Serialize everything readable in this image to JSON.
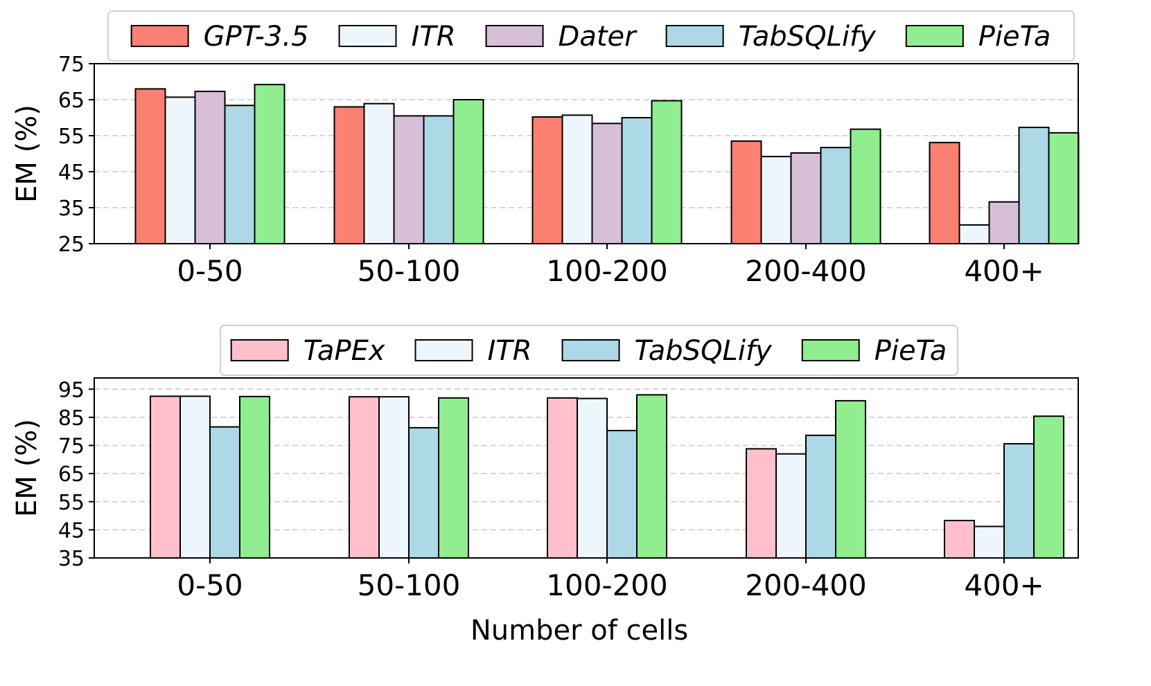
{
  "chart_data": [
    {
      "type": "bar",
      "categories": [
        "0-50",
        "50-100",
        "100-200",
        "200-400",
        "400+"
      ],
      "ylabel": "EM (%)",
      "xlabel": "",
      "ylim": [
        25,
        75
      ],
      "yticks": [
        25,
        35,
        45,
        55,
        65,
        75
      ],
      "legend_position": "top",
      "series": [
        {
          "name": "GPT-3.5",
          "color": "#fa8072",
          "values": [
            68.0,
            63.0,
            60.2,
            53.5,
            53.1
          ]
        },
        {
          "name": "ITR",
          "color": "#eef6fd",
          "values": [
            65.7,
            63.9,
            60.7,
            49.2,
            30.2
          ]
        },
        {
          "name": "Dater",
          "color": "#d8bfd8",
          "values": [
            67.3,
            60.5,
            58.4,
            50.2,
            36.6
          ]
        },
        {
          "name": "TabSQLify",
          "color": "#add8e6",
          "values": [
            63.4,
            60.5,
            60.0,
            51.7,
            57.3
          ]
        },
        {
          "name": "PieTa",
          "color": "#90ee90",
          "values": [
            69.2,
            65.0,
            64.7,
            56.8,
            55.8
          ]
        }
      ]
    },
    {
      "type": "bar",
      "categories": [
        "0-50",
        "50-100",
        "100-200",
        "200-400",
        "400+"
      ],
      "ylabel": "EM (%)",
      "xlabel": "Number of cells",
      "ylim": [
        35,
        99
      ],
      "yticks": [
        35,
        45,
        55,
        65,
        75,
        85,
        95
      ],
      "legend_position": "top",
      "series": [
        {
          "name": "TaPEx",
          "color": "#ffc0cb",
          "values": [
            92.5,
            92.3,
            91.9,
            73.8,
            48.3
          ]
        },
        {
          "name": "ITR",
          "color": "#eef6fd",
          "values": [
            92.5,
            92.3,
            91.7,
            72.0,
            46.2
          ]
        },
        {
          "name": "TabSQLify",
          "color": "#add8e6",
          "values": [
            81.6,
            81.3,
            80.3,
            78.6,
            75.6
          ]
        },
        {
          "name": "PieTa",
          "color": "#90ee90",
          "values": [
            92.4,
            91.9,
            93.0,
            90.9,
            85.4
          ]
        }
      ]
    }
  ]
}
